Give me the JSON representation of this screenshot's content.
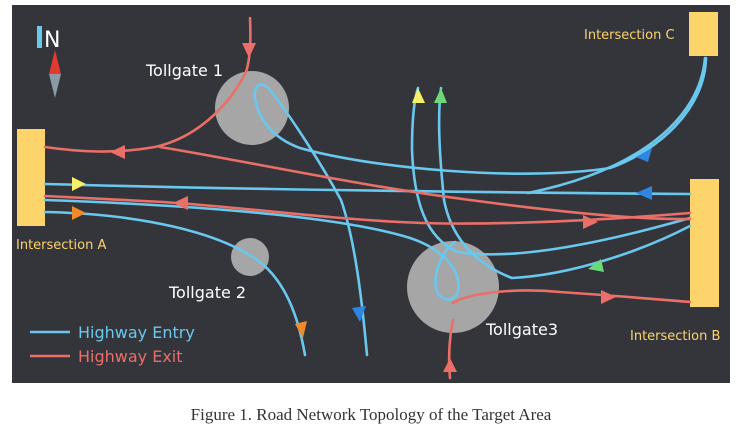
{
  "figure": {
    "caption": "Figure 1. Road Network Topology of the Target Area",
    "compass_label": "N",
    "nodes": {
      "tollgate_1": "Tollgate 1",
      "tollgate_2": "Tollgate 2",
      "tollgate_3": "Tollgate3",
      "intersection_a": "Intersection A",
      "intersection_b": "Intersection B",
      "intersection_c": "Intersection C"
    },
    "legend": {
      "entry": "Highway Entry",
      "exit": "Highway Exit"
    },
    "colors": {
      "background": "#34353b",
      "entry_line": "#6ac8ee",
      "exit_line": "#e96f68",
      "tollgate_fill": "#a6a6a6",
      "intersection_fill": "#fdd36c",
      "label_text": "#ffffff",
      "intersection_text": "#fdd36c",
      "arrow_yellow": "#f5f06a",
      "arrow_green": "#6bd978",
      "arrow_blue": "#2f86e0",
      "arrow_orange": "#f08a2a",
      "arrow_red": "#e96f68"
    }
  }
}
